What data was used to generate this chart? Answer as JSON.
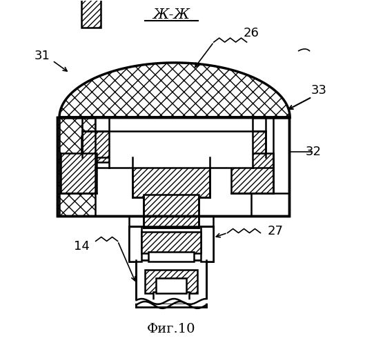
{
  "title": "Ж-Ж",
  "fig_label": "Фиг.10",
  "bg_color": "#ffffff",
  "line_color": "#000000",
  "lw": 1.8
}
